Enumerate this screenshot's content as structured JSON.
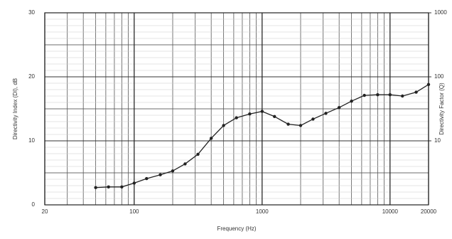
{
  "chart_data": {
    "type": "line",
    "x_label": "Frequency (Hz)",
    "y_label": "Directivity Index (DI), dB",
    "y2_label": "Directivity Factor (Q)",
    "x": [
      50,
      63,
      80,
      100,
      125,
      160,
      200,
      250,
      315,
      400,
      500,
      630,
      800,
      1000,
      1250,
      1600,
      2000,
      2500,
      3150,
      4000,
      5000,
      6300,
      8000,
      10000,
      12500,
      16000,
      20000
    ],
    "series": [
      {
        "color": "#222222",
        "values": [
          2.7,
          2.8,
          2.8,
          3.4,
          4.1,
          4.7,
          5.3,
          6.4,
          7.9,
          10.4,
          12.4,
          13.6,
          14.2,
          14.6,
          13.8,
          12.6,
          12.4,
          13.4,
          14.3,
          15.2,
          16.2,
          17.1,
          17.2,
          17.2,
          17.0,
          17.6,
          18.8
        ]
      }
    ],
    "xscale": "log",
    "xlim": [
      20,
      20000
    ],
    "xticks": [
      20,
      100,
      1000,
      10000,
      20000
    ],
    "ylim": [
      0,
      30
    ],
    "yticks": [
      0,
      10,
      20,
      30
    ],
    "y_minor_ticks": [
      5,
      15,
      25
    ],
    "y2scale": "log",
    "y2lim": [
      1,
      1000
    ],
    "y2ticks": [
      10,
      100,
      1000
    ],
    "grid": true
  }
}
